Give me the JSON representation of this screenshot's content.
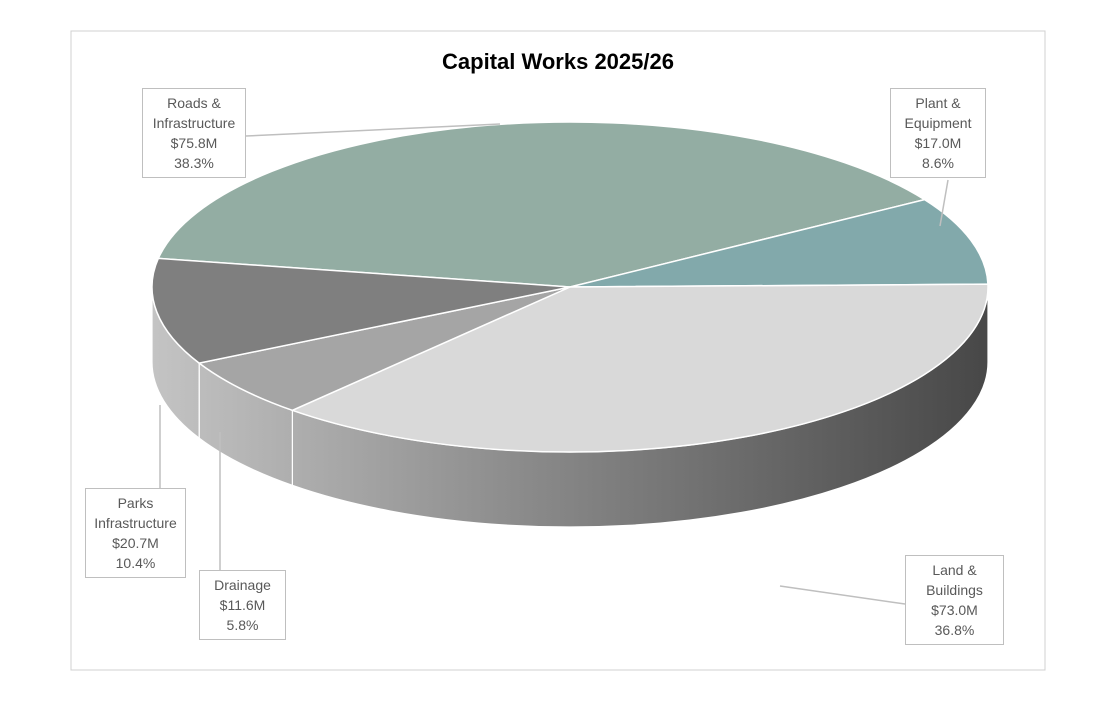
{
  "chart_data": {
    "type": "pie",
    "title": "Capital Works 2025/26",
    "categories": [
      "Roads & Infrastructure",
      "Plant & Equipment",
      "Land & Buildings",
      "Drainage",
      "Parks Infrastructure"
    ],
    "values": [
      75.8,
      17.0,
      73.0,
      11.6,
      20.7
    ],
    "value_labels": [
      "$75.8M",
      "$17.0M",
      "$73.0M",
      "$11.6M",
      "$20.7M"
    ],
    "percents": [
      38.3,
      8.6,
      36.8,
      5.8,
      10.4
    ],
    "percent_labels": [
      "38.3%",
      "8.6%",
      "36.8%",
      "5.8%",
      "10.4%"
    ],
    "colors": [
      "#93ada3",
      "#82a9ab",
      "#d9d9d9",
      "#a5a5a5",
      "#7f7f7f"
    ]
  }
}
